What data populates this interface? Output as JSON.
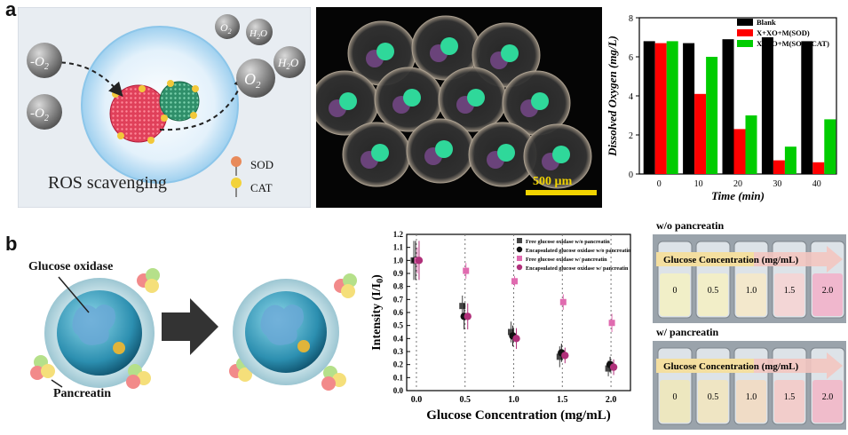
{
  "panel_labels": {
    "a": "a",
    "b": "b"
  },
  "ros": {
    "left_species": [
      "-O",
      "-O"
    ],
    "left_sub": "2",
    "products": [
      {
        "main": "O",
        "sub": "2"
      },
      {
        "main": "H",
        "sub": "2",
        "tail": "O"
      },
      {
        "main": "O",
        "sub": "2"
      },
      {
        "main": "H",
        "sub": "2",
        "tail": "O"
      }
    ],
    "legend": [
      {
        "label": "SOD",
        "color": "#e88a5a"
      },
      {
        "label": "CAT",
        "color": "#f2d23a"
      }
    ],
    "caption": "ROS scavenging"
  },
  "micrograph": {
    "scale_bar": "500 µm"
  },
  "dissolved_oxygen_chart": {
    "chart_data": {
      "type": "bar",
      "categories": [
        "0",
        "10",
        "20",
        "30",
        "40"
      ],
      "series": [
        {
          "name": "Blank",
          "color": "#000000",
          "values": [
            6.8,
            6.7,
            6.9,
            7.0,
            6.8
          ]
        },
        {
          "name": "X+XO+M(SOD)",
          "color": "#ff0000",
          "values": [
            6.7,
            4.1,
            2.3,
            0.7,
            0.6
          ]
        },
        {
          "name": "X+XO+M(SOD+CAT)",
          "color": "#00cc00",
          "values": [
            6.8,
            6.0,
            3.0,
            1.4,
            2.8
          ]
        }
      ],
      "xlabel": "Time (min)",
      "ylabel": "Dissolved Oxygen (mg/L)",
      "ylim": [
        0,
        8
      ],
      "yticks": [
        "0",
        "2",
        "4",
        "6",
        "8"
      ],
      "legend_position": "top-right"
    }
  },
  "glucose_diagram": {
    "label_enzyme": "Glucose oxidase",
    "label_pancreatin": "Pancreatin"
  },
  "intensity_chart": {
    "chart_data": {
      "type": "scatter",
      "x": [
        0.0,
        0.5,
        1.0,
        1.5,
        2.0
      ],
      "xticks": [
        "0.0",
        "0.5",
        "1.0",
        "1.5",
        "2.0"
      ],
      "yticks": [
        "0.0",
        "0.1",
        "0.2",
        "0.3",
        "0.4",
        "0.5",
        "0.6",
        "0.7",
        "0.8",
        "0.9",
        "1.0",
        "1.1",
        "1.2"
      ],
      "ylim": [
        0.0,
        1.2
      ],
      "xlim": [
        -0.1,
        2.2
      ],
      "xlabel": "Glucose Concentration (mg/mL)",
      "ylabel": "Intensity (I/I0)",
      "ylabel_main": "Intensity (I/I",
      "ylabel_sub": "0",
      "ylabel_tail": ")",
      "series": [
        {
          "name": "Free glucose oxidase w/o pancreatin",
          "color": "#444444",
          "marker": "square",
          "values": [
            1.0,
            0.65,
            0.45,
            0.26,
            0.17
          ],
          "err": [
            0.15,
            0.08,
            0.08,
            0.08,
            0.06
          ]
        },
        {
          "name": "Encapsulated glucose oxidase w/o pancreatin",
          "color": "#111111",
          "marker": "circle",
          "values": [
            1.0,
            0.57,
            0.42,
            0.29,
            0.2
          ],
          "err": [
            0.15,
            0.1,
            0.08,
            0.07,
            0.06
          ]
        },
        {
          "name": "Free glucose oxidase w/ pancreatin",
          "color": "#e06bb0",
          "marker": "square",
          "values": [
            1.0,
            0.92,
            0.84,
            0.68,
            0.52
          ],
          "err": [
            0.1,
            0.06,
            0.04,
            0.06,
            0.07
          ]
        },
        {
          "name": "Encapsulated glucose oxidase w/ pancreatin",
          "color": "#b0307a",
          "marker": "circle",
          "values": [
            1.0,
            0.57,
            0.4,
            0.27,
            0.18
          ],
          "err": [
            0.15,
            0.1,
            0.08,
            0.06,
            0.06
          ]
        }
      ],
      "legend_position": "top-right"
    }
  },
  "vials": [
    {
      "title": "w/o pancreatin",
      "arrow_label": "Glucose Concentration (mg/mL)",
      "concentrations": [
        "0",
        "0.5",
        "1.0",
        "1.5",
        "2.0"
      ],
      "liquid_colors": [
        "#f1efc8",
        "#f2eec8",
        "#f3e8cc",
        "#f3d6d6",
        "#f0b7cd"
      ]
    },
    {
      "title": "w/ pancreatin",
      "arrow_label": "Glucose Concentration (mg/mL)",
      "concentrations": [
        "0",
        "0.5",
        "1.0",
        "1.5",
        "2.0"
      ],
      "liquid_colors": [
        "#ede7bf",
        "#efe5c3",
        "#f0dcc6",
        "#f2cdcb",
        "#f0bccb"
      ]
    }
  ]
}
